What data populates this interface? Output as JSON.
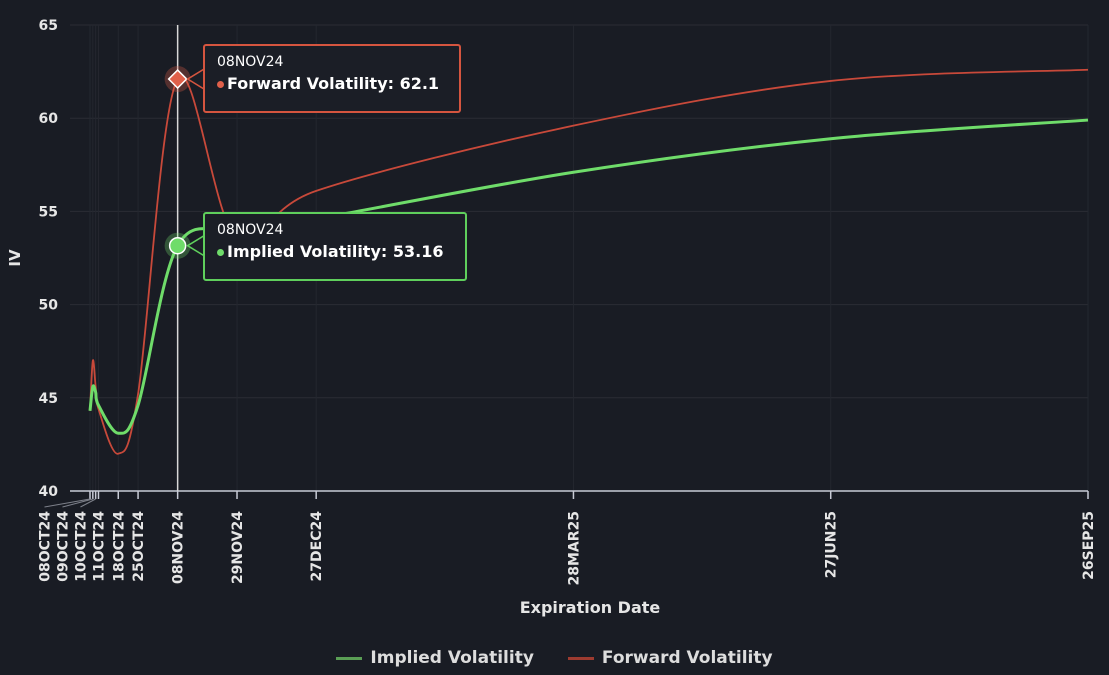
{
  "chart_data": {
    "type": "line",
    "title": "",
    "xlabel": "Expiration Date",
    "ylabel": "IV",
    "ylim": [
      40,
      65
    ],
    "yticks": [
      40,
      45,
      50,
      55,
      60,
      65
    ],
    "xtick_labels": [
      "08OCT24",
      "09OCT24",
      "10OCT24",
      "11OCT24",
      "18OCT24",
      "25OCT24",
      "08NOV24",
      "29NOV24",
      "27DEC24",
      "28MAR25",
      "27JUN25",
      "26SEP25"
    ],
    "x_days": [
      0,
      1,
      2,
      3,
      10,
      17,
      31,
      52,
      80,
      171,
      262,
      353
    ],
    "grid": true,
    "legend_position": "bottom",
    "series": [
      {
        "name": "Implied Volatility",
        "color": "#6fdc6a",
        "values": [
          44.3,
          45.6,
          45.3,
          44.6,
          43.1,
          44.6,
          53.16,
          54.0,
          54.6,
          57.1,
          58.9,
          59.9
        ]
      },
      {
        "name": "Forward Volatility",
        "color": "#c8493a",
        "values": [
          44.3,
          47.0,
          45.6,
          44.4,
          42.0,
          45.2,
          62.1,
          53.5,
          56.1,
          59.6,
          62.0,
          62.6
        ]
      }
    ],
    "tooltips": [
      {
        "date": "08NOV24",
        "series": "Forward Volatility",
        "label": "Forward Volatility: 62.1",
        "color": "#e0604a"
      },
      {
        "date": "08NOV24",
        "series": "Implied Volatility",
        "label": "Implied Volatility: 53.16",
        "color": "#6fdc6a"
      }
    ],
    "crosshair_date": "08NOV24"
  }
}
